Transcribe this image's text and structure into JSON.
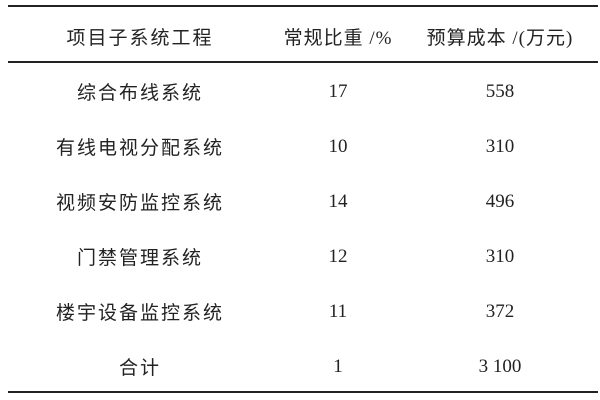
{
  "table": {
    "headers": [
      "项目子系统工程",
      "常规比重 /%",
      "预算成本 /(万元)"
    ],
    "rows": [
      [
        "综合布线系统",
        "17",
        "558"
      ],
      [
        "有线电视分配系统",
        "10",
        "310"
      ],
      [
        "视频安防监控系统",
        "14",
        "496"
      ],
      [
        "门禁管理系统",
        "12",
        "310"
      ],
      [
        "楼宇设备监控系统",
        "11",
        "372"
      ],
      [
        "合计",
        "1",
        "3 100"
      ]
    ]
  }
}
